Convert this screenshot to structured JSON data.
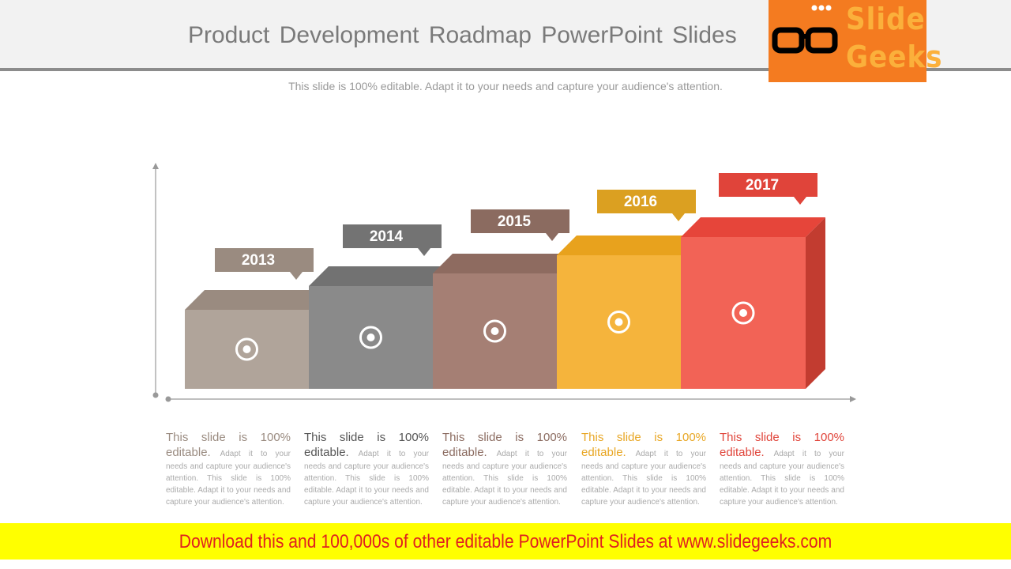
{
  "header": {
    "title": "Product Development Roadmap PowerPoint Slides",
    "subtitle": "This slide is 100% editable. Adapt it to your needs and capture your audience's attention."
  },
  "logo": {
    "line1": "Slide",
    "line2": "Geeks"
  },
  "steps": [
    {
      "year": "2013",
      "lead": "This slide is 100% editable.",
      "body": "Adapt it to your needs and capture your audience's attention. This slide is 100% editable. Adapt it to your needs and capture your audience's attention."
    },
    {
      "year": "2014",
      "lead": "This slide is 100% editable.",
      "body": "Adapt it to your needs and capture your audience's attention. This slide is 100% editable. Adapt it to your needs and capture your audience's attention."
    },
    {
      "year": "2015",
      "lead": "This slide is 100% editable.",
      "body": "Adapt it to your needs and capture your audience's attention. This slide is 100% editable. Adapt it to your needs and capture your audience's attention."
    },
    {
      "year": "2016",
      "lead": "This slide is 100% editable.",
      "body": "Adapt it to your needs and capture your audience's attention. This slide is 100% editable. Adapt it to your needs and capture your audience's attention."
    },
    {
      "year": "2017",
      "lead": "This slide is 100% editable.",
      "body": "Adapt it to your needs and capture your audience's attention. This slide is 100% editable. Adapt it to your needs and capture your audience's attention."
    }
  ],
  "footer": {
    "text": "Download this and 100,000s of other editable PowerPoint Slides at www.slidegeeks.com"
  }
}
